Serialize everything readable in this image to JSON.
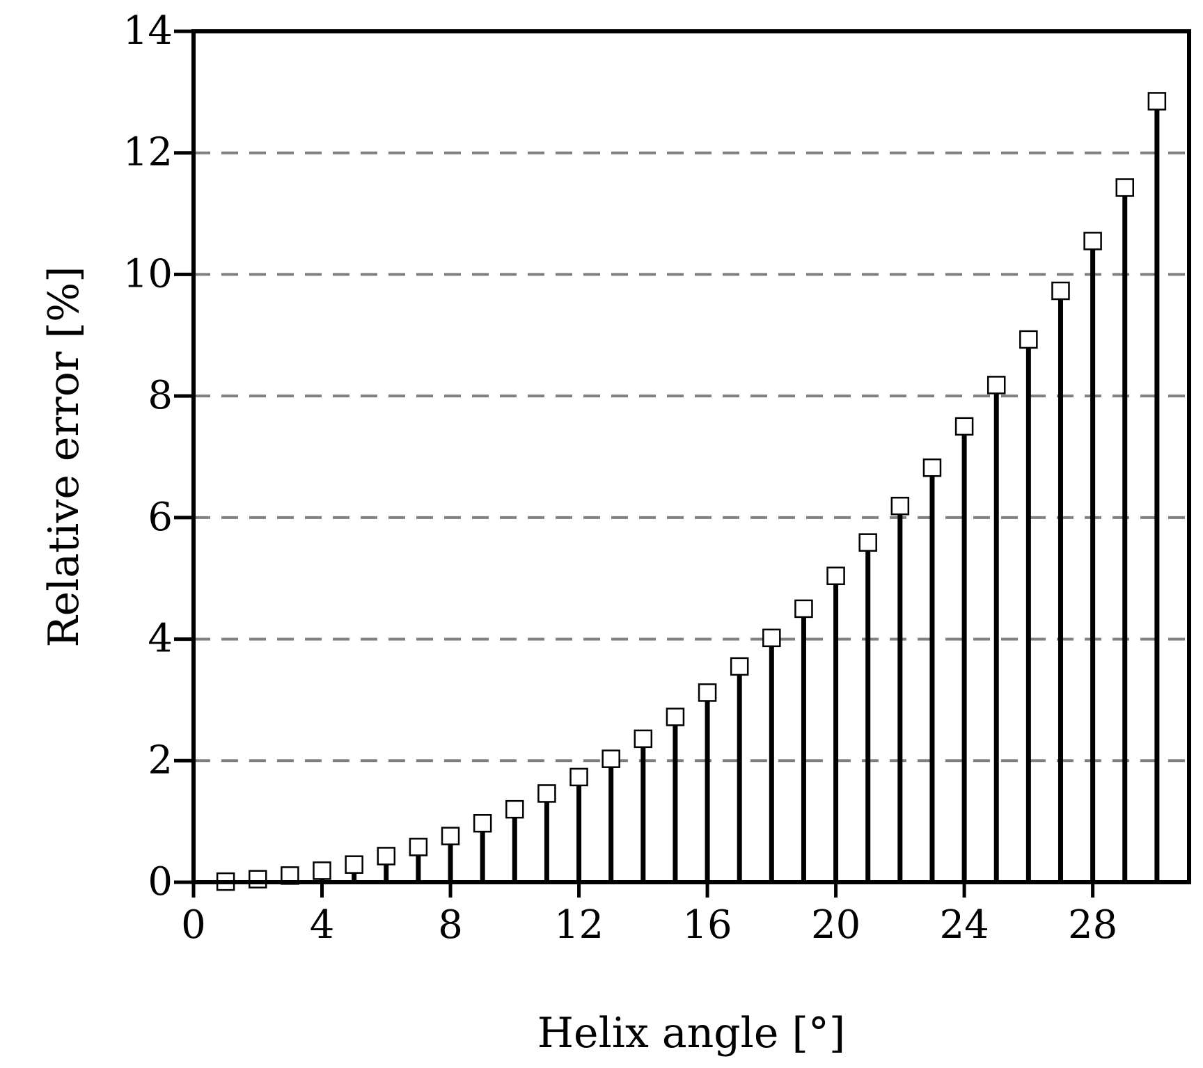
{
  "chart_data": {
    "type": "bar",
    "style": "stem",
    "marker": "open-square",
    "xlabel": "Helix angle [°]",
    "ylabel": "Relative error [%]",
    "xlim": [
      0,
      31
    ],
    "ylim": [
      0,
      14
    ],
    "xticks": [
      0,
      4,
      8,
      12,
      16,
      20,
      24,
      28
    ],
    "yticks": [
      0,
      2,
      4,
      6,
      8,
      10,
      12,
      14
    ],
    "grid": {
      "y": true,
      "style": "dashed",
      "color": "#808080"
    },
    "colors": {
      "stem": "#000000",
      "marker_fill": "#ffffff",
      "frame": "#000000"
    },
    "x": [
      1,
      2,
      3,
      4,
      5,
      6,
      7,
      8,
      9,
      10,
      11,
      12,
      13,
      14,
      15,
      16,
      17,
      18,
      19,
      20,
      21,
      22,
      23,
      24,
      25,
      26,
      27,
      28,
      29,
      30
    ],
    "values": [
      0.01,
      0.05,
      0.11,
      0.19,
      0.29,
      0.43,
      0.58,
      0.76,
      0.97,
      1.2,
      1.46,
      1.73,
      2.03,
      2.36,
      2.72,
      3.12,
      3.55,
      4.02,
      4.5,
      5.04,
      5.59,
      6.19,
      6.82,
      7.5,
      8.18,
      8.93,
      9.73,
      10.55,
      11.43,
      12.85
    ]
  }
}
